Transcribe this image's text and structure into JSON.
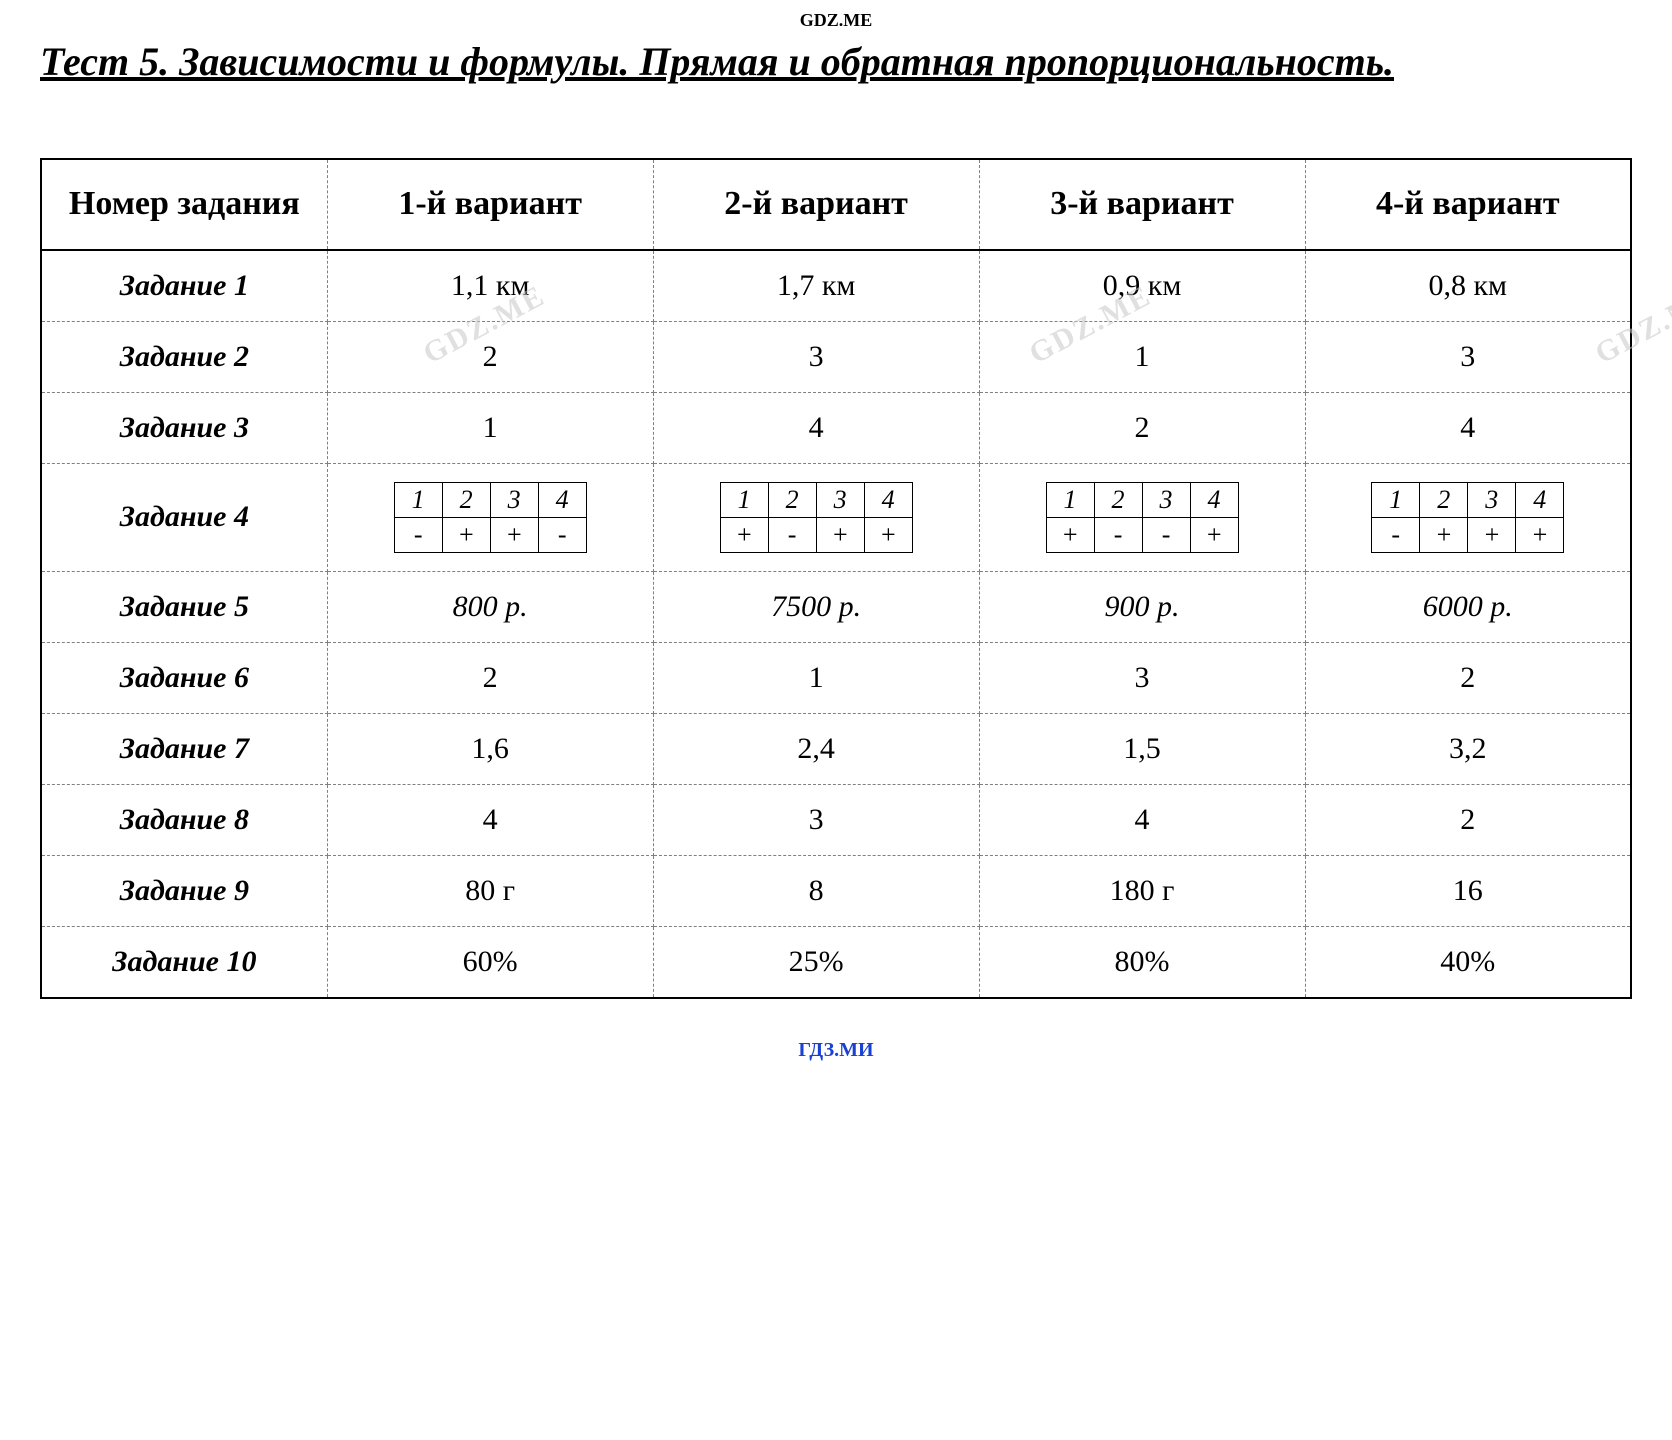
{
  "header_watermark": "GDZ.ME",
  "title": "Тест 5. Зависимости и формулы. Прямая и обратная пропорциональность.",
  "footer_watermark": "ГДЗ.МИ",
  "diag_watermark_text": "GDZ.ME",
  "table": {
    "columns": [
      "Номер задания",
      "1-й вариант",
      "2-й вариант",
      "3-й вариант",
      "4-й вариант"
    ],
    "col_widths": [
      "18%",
      "20.5%",
      "20.5%",
      "20.5%",
      "20.5%"
    ],
    "header_fontsize": 34,
    "cell_fontsize": 30,
    "border_color": "#000000",
    "dashed_color": "#808080",
    "rows": [
      {
        "label": "Задание 1",
        "cells": [
          "1,1 км",
          "1,7 км",
          "0,9 км",
          "0,8 км"
        ],
        "italic": false
      },
      {
        "label": "Задание 2",
        "cells": [
          "2",
          "3",
          "1",
          "3"
        ],
        "italic": false,
        "watermarks": true
      },
      {
        "label": "Задание 3",
        "cells": [
          "1",
          "4",
          "2",
          "4"
        ],
        "italic": false
      },
      {
        "label": "Задание 4",
        "type": "mini",
        "mini": [
          {
            "headers": [
              "1",
              "2",
              "3",
              "4"
            ],
            "values": [
              "-",
              "+",
              "+",
              "-"
            ]
          },
          {
            "headers": [
              "1",
              "2",
              "3",
              "4"
            ],
            "values": [
              "+",
              "-",
              "+",
              "+"
            ]
          },
          {
            "headers": [
              "1",
              "2",
              "3",
              "4"
            ],
            "values": [
              "+",
              "-",
              "-",
              "+"
            ]
          },
          {
            "headers": [
              "1",
              "2",
              "3",
              "4"
            ],
            "values": [
              "-",
              "+",
              "+",
              "+"
            ]
          }
        ]
      },
      {
        "label": "Задание 5",
        "cells": [
          "800 р.",
          "7500 р.",
          "900 р.",
          "6000 р."
        ],
        "italic": true
      },
      {
        "label": "Задание 6",
        "cells": [
          "2",
          "1",
          "3",
          "2"
        ],
        "italic": false
      },
      {
        "label": "Задание 7",
        "cells": [
          "1,6",
          "2,4",
          "1,5",
          "3,2"
        ],
        "italic": false
      },
      {
        "label": "Задание 8",
        "cells": [
          "4",
          "3",
          "4",
          "2"
        ],
        "italic": false
      },
      {
        "label": "Задание 9",
        "cells": [
          "80 г",
          "8",
          "180 г",
          "16"
        ],
        "italic": false
      },
      {
        "label": "Задание 10",
        "cells": [
          "60%",
          "25%",
          "80%",
          "40%"
        ],
        "italic": false
      }
    ]
  },
  "mini_table": {
    "cell_fontsize": 26,
    "border_color": "#000000"
  },
  "colors": {
    "background": "#ffffff",
    "text": "#000000",
    "footer": "#1941d4",
    "watermark_diag": "#c8c8c8"
  }
}
